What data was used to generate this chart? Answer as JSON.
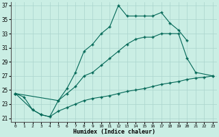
{
  "xlabel": "Humidex (Indice chaleur)",
  "xlim": [
    -0.5,
    23.5
  ],
  "ylim": [
    20.5,
    37.5
  ],
  "yticks": [
    21,
    23,
    25,
    27,
    29,
    31,
    33,
    35,
    37
  ],
  "xticks": [
    0,
    1,
    2,
    3,
    4,
    5,
    6,
    7,
    8,
    9,
    10,
    11,
    12,
    13,
    14,
    15,
    16,
    17,
    18,
    19,
    20,
    21,
    22,
    23
  ],
  "bg_color": "#caeee4",
  "grid_color": "#aad4cc",
  "line_color": "#006655",
  "line1_x": [
    0,
    1,
    2,
    3,
    4,
    5,
    6,
    7,
    8,
    9,
    10,
    11,
    12,
    13,
    14,
    15,
    16,
    17,
    18,
    19,
    20
  ],
  "line1_y": [
    24.5,
    24.0,
    22.2,
    21.5,
    21.2,
    23.5,
    25.2,
    27.5,
    30.5,
    31.5,
    33.0,
    34.0,
    37.0,
    35.5,
    35.5,
    35.5,
    35.5,
    36.0,
    34.5,
    33.5,
    32.0
  ],
  "line2_x": [
    0,
    5,
    6,
    7,
    8,
    9,
    10,
    11,
    12,
    13,
    14,
    15,
    16,
    17,
    18,
    19,
    20,
    21,
    23
  ],
  "line2_y": [
    24.5,
    23.5,
    24.5,
    25.5,
    27.0,
    27.5,
    28.5,
    29.5,
    30.5,
    31.5,
    32.2,
    32.5,
    32.5,
    33.0,
    33.0,
    33.0,
    29.5,
    27.5,
    27.0
  ],
  "line3_x": [
    0,
    2,
    3,
    4,
    5,
    6,
    7,
    8,
    9,
    10,
    11,
    12,
    13,
    14,
    15,
    16,
    17,
    18,
    19,
    20,
    21,
    22,
    23
  ],
  "line3_y": [
    24.5,
    22.2,
    21.5,
    21.2,
    22.0,
    22.5,
    23.0,
    23.5,
    23.8,
    24.0,
    24.2,
    24.5,
    24.8,
    25.0,
    25.2,
    25.5,
    25.8,
    26.0,
    26.2,
    26.5,
    26.7,
    26.8,
    27.0
  ]
}
